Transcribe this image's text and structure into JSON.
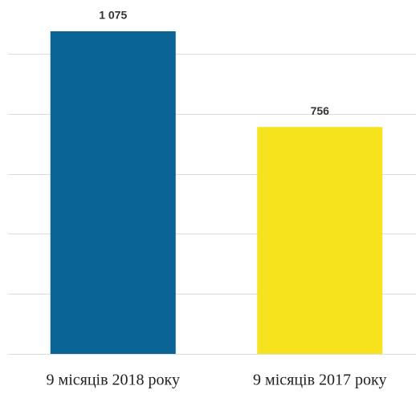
{
  "chart_data": {
    "type": "bar",
    "categories": [
      "9 місяців 2018 року",
      "9 місяців 2017 року"
    ],
    "values": [
      1075,
      756
    ],
    "value_labels": [
      "1 075",
      "756"
    ],
    "colors": [
      "#0a6496",
      "#f6e31e"
    ],
    "ylim": [
      0,
      1200
    ],
    "yticks": [
      0,
      200,
      400,
      600,
      800,
      1000
    ],
    "grid": true
  }
}
